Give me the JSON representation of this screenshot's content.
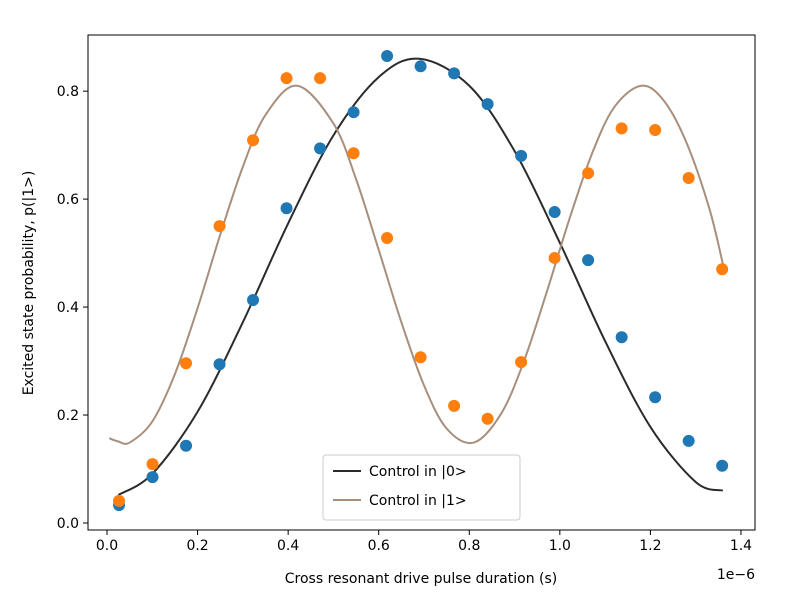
{
  "chart_data": {
    "type": "scatter",
    "xlabel": "Cross resonant drive pulse duration (s)",
    "ylabel": "Excited state probability, p(|1>)",
    "x_offset_label": "1e−6",
    "xlim": [
      -0.042,
      1.431
    ],
    "ylim": [
      -0.013,
      0.904
    ],
    "xticks": [
      0.0,
      0.2,
      0.4,
      0.6,
      0.8,
      1.0,
      1.2,
      1.4
    ],
    "xtick_labels": [
      "0.0",
      "0.2",
      "0.4",
      "0.6",
      "0.8",
      "1.0",
      "1.2",
      "1.4"
    ],
    "yticks": [
      0.0,
      0.2,
      0.4,
      0.6,
      0.8
    ],
    "ytick_labels": [
      "0.0",
      "0.2",
      "0.4",
      "0.6",
      "0.8"
    ],
    "grid": false,
    "legend_placement": "bottom-center",
    "scatter_series": [
      {
        "color": "#1f77b4",
        "x": [
          0.0265,
          0.1005,
          0.1745,
          0.2485,
          0.3225,
          0.3965,
          0.4705,
          0.5445,
          0.6185,
          0.6925,
          0.7665,
          0.8405,
          0.9145,
          0.9885,
          1.0625,
          1.1365,
          1.2105,
          1.2845,
          1.3585
        ],
        "y": [
          0.033,
          0.085,
          0.143,
          0.294,
          0.413,
          0.583,
          0.694,
          0.761,
          0.865,
          0.846,
          0.833,
          0.776,
          0.68,
          0.576,
          0.487,
          0.344,
          0.233,
          0.152,
          0.106
        ]
      },
      {
        "color": "#ff7f0e",
        "x": [
          0.0265,
          0.1005,
          0.1745,
          0.2485,
          0.3225,
          0.3965,
          0.4705,
          0.5445,
          0.6185,
          0.6925,
          0.7665,
          0.8405,
          0.9145,
          0.9885,
          1.0625,
          1.1365,
          1.2105,
          1.2845,
          1.3585
        ],
        "y": [
          0.041,
          0.109,
          0.296,
          0.55,
          0.709,
          0.824,
          0.824,
          0.685,
          0.528,
          0.307,
          0.217,
          0.193,
          0.298,
          0.491,
          0.648,
          0.731,
          0.728,
          0.639,
          0.47
        ]
      }
    ],
    "line_series": [
      {
        "name": "Control in |0>",
        "color": "#2b2b2b",
        "x": [
          0.025,
          0.1,
          0.2,
          0.3,
          0.4,
          0.5,
          0.6,
          0.69,
          0.8,
          0.9,
          1.0,
          1.1,
          1.2,
          1.3,
          1.36
        ],
        "y": [
          0.052,
          0.091,
          0.206,
          0.372,
          0.555,
          0.718,
          0.826,
          0.86,
          0.81,
          0.689,
          0.519,
          0.337,
          0.178,
          0.076,
          0.06
        ]
      },
      {
        "name": "Control in |1>",
        "color": "#a88f7c",
        "x": [
          0.005,
          0.025,
          0.05,
          0.1,
          0.15,
          0.2,
          0.25,
          0.3,
          0.35,
          0.42,
          0.5,
          0.55,
          0.6,
          0.65,
          0.7,
          0.75,
          0.81,
          0.87,
          0.92,
          0.97,
          1.02,
          1.07,
          1.12,
          1.18,
          1.23,
          1.28,
          1.33,
          1.36
        ],
        "y": [
          0.157,
          0.151,
          0.149,
          0.188,
          0.276,
          0.398,
          0.534,
          0.66,
          0.756,
          0.81,
          0.74,
          0.637,
          0.506,
          0.372,
          0.255,
          0.175,
          0.149,
          0.202,
          0.298,
          0.425,
          0.56,
          0.682,
          0.77,
          0.81,
          0.782,
          0.704,
          0.583,
          0.48
        ]
      }
    ]
  }
}
